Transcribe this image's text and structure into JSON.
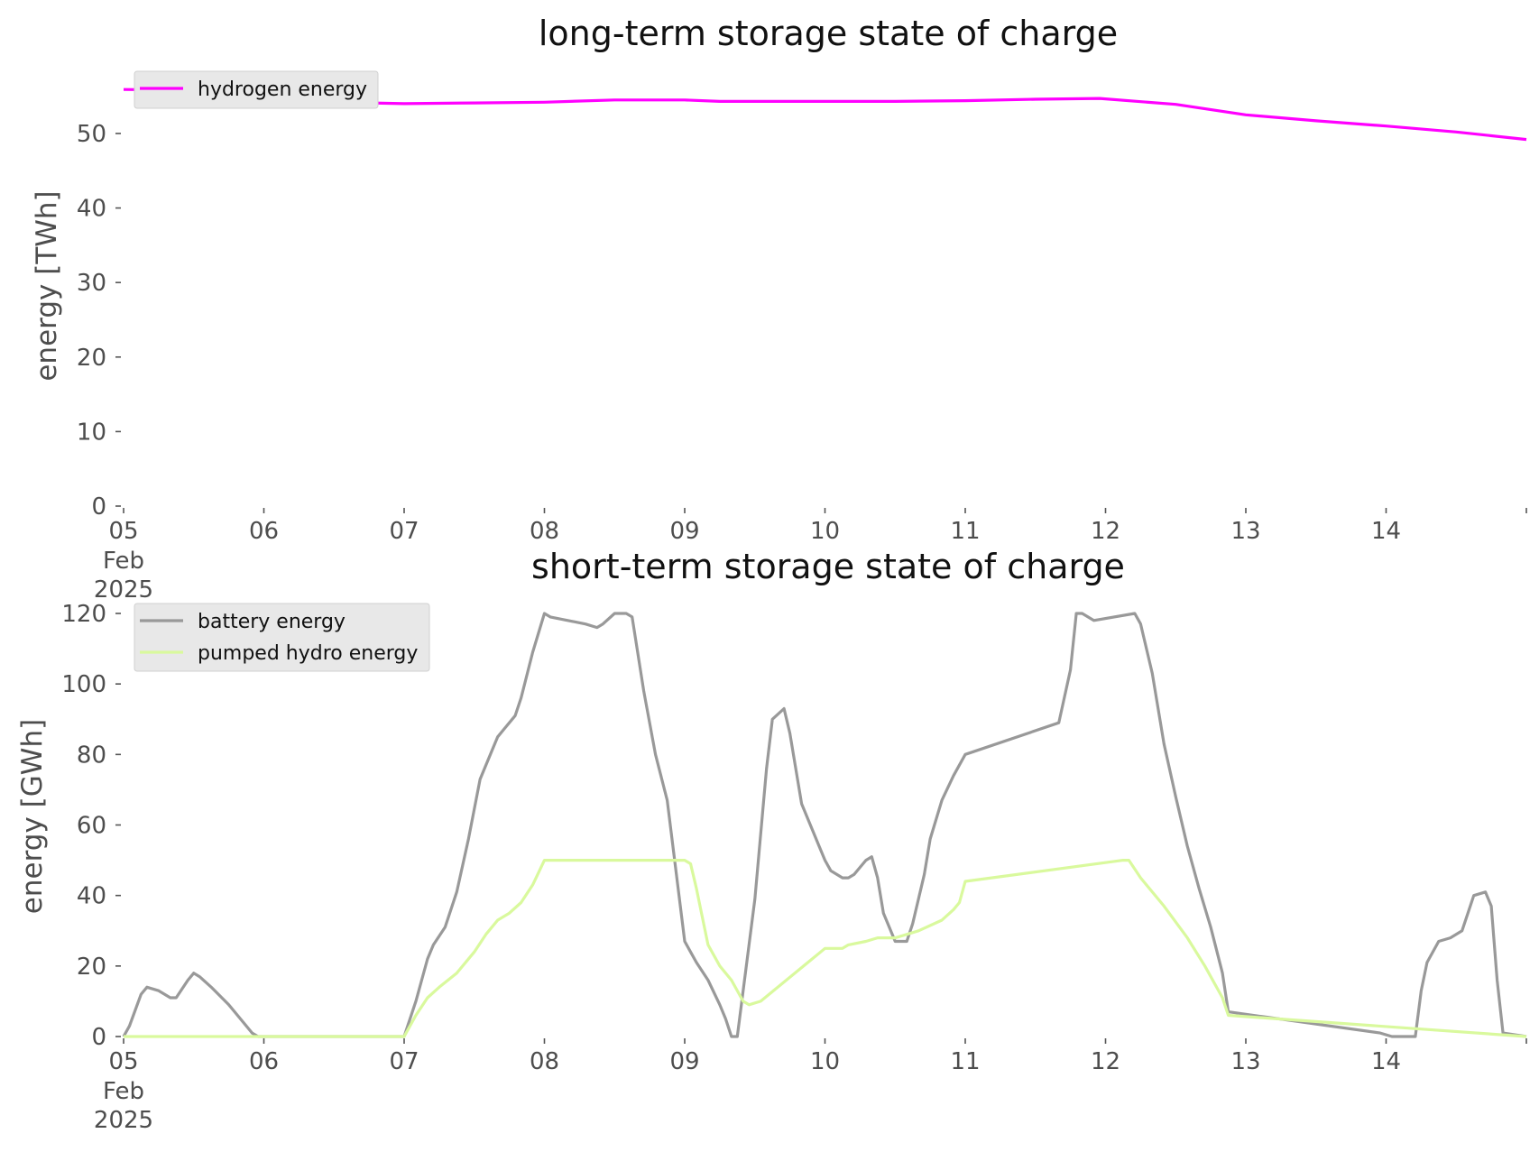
{
  "chart_data": [
    {
      "type": "line",
      "title": "long-term storage state of charge",
      "xlabel": "",
      "ylabel": "energy [TWh]",
      "xlim": [
        "2025-02-05",
        "2025-02-15"
      ],
      "ylim": [
        0,
        57.5
      ],
      "yticks": [
        0,
        10,
        20,
        30,
        40,
        50
      ],
      "xticks": [
        "05",
        "06",
        "07",
        "08",
        "09",
        "10",
        "11",
        "12",
        "13",
        "14"
      ],
      "xtick_date_label": [
        "Feb",
        "2025"
      ],
      "grid": false,
      "legend": "top-left",
      "series": [
        {
          "name": "hydrogen energy",
          "color": "#ff00ff",
          "x": [
            "2025-02-05 00:00",
            "2025-02-05 12:00",
            "2025-02-06 00:00",
            "2025-02-06 12:00",
            "2025-02-07 00:00",
            "2025-02-07 12:00",
            "2025-02-08 00:00",
            "2025-02-08 12:00",
            "2025-02-09 00:00",
            "2025-02-09 06:00",
            "2025-02-10 00:00",
            "2025-02-10 12:00",
            "2025-02-11 00:00",
            "2025-02-11 12:00",
            "2025-02-11 23:00",
            "2025-02-12 12:00",
            "2025-02-13 00:00",
            "2025-02-13 12:00",
            "2025-02-14 00:00",
            "2025-02-14 12:00",
            "2025-02-15 00:00"
          ],
          "values": [
            55.9,
            55.8,
            54.9,
            54.2,
            54.0,
            54.1,
            54.2,
            54.5,
            54.5,
            54.3,
            54.3,
            54.3,
            54.4,
            54.6,
            54.7,
            53.9,
            52.5,
            51.7,
            51.0,
            50.2,
            49.2
          ]
        }
      ]
    },
    {
      "type": "line",
      "title": "short-term storage state of charge",
      "xlabel": "",
      "ylabel": "energy [GWh]",
      "xlim": [
        "2025-02-05",
        "2025-02-15"
      ],
      "ylim": [
        0,
        120
      ],
      "yticks": [
        0,
        20,
        40,
        60,
        80,
        100,
        120
      ],
      "xticks": [
        "05",
        "06",
        "07",
        "08",
        "09",
        "10",
        "11",
        "12",
        "13",
        "14"
      ],
      "xtick_date_label": [
        "Feb",
        "2025"
      ],
      "grid": false,
      "legend": "top-left",
      "series": [
        {
          "name": "battery energy",
          "color": "#999999",
          "x": [
            "2025-02-05 00:00",
            "2025-02-05 01:00",
            "2025-02-05 03:00",
            "2025-02-05 04:00",
            "2025-02-05 06:00",
            "2025-02-05 08:00",
            "2025-02-05 09:00",
            "2025-02-05 11:00",
            "2025-02-05 12:00",
            "2025-02-05 13:00",
            "2025-02-05 15:00",
            "2025-02-05 18:00",
            "2025-02-05 20:00",
            "2025-02-05 22:00",
            "2025-02-05 23:00",
            "2025-02-06 00:00",
            "2025-02-07 00:00",
            "2025-02-07 02:00",
            "2025-02-07 04:00",
            "2025-02-07 05:00",
            "2025-02-07 07:00",
            "2025-02-07 09:00",
            "2025-02-07 11:00",
            "2025-02-07 13:00",
            "2025-02-07 15:00",
            "2025-02-07 16:00",
            "2025-02-07 17:00",
            "2025-02-07 19:00",
            "2025-02-07 20:00",
            "2025-02-07 22:00",
            "2025-02-08 00:00",
            "2025-02-08 01:00",
            "2025-02-08 04:00",
            "2025-02-08 07:00",
            "2025-02-08 09:00",
            "2025-02-08 10:00",
            "2025-02-08 12:00",
            "2025-02-08 14:00",
            "2025-02-08 15:00",
            "2025-02-08 17:00",
            "2025-02-08 19:00",
            "2025-02-08 21:00",
            "2025-02-09 00:00",
            "2025-02-09 02:00",
            "2025-02-09 04:00",
            "2025-02-09 06:00",
            "2025-02-09 07:00",
            "2025-02-09 08:00",
            "2025-02-09 09:00",
            "2025-02-09 12:00",
            "2025-02-09 14:00",
            "2025-02-09 15:00",
            "2025-02-09 17:00",
            "2025-02-09 18:00",
            "2025-02-09 20:00",
            "2025-02-09 23:00",
            "2025-02-10 00:00",
            "2025-02-10 01:00",
            "2025-02-10 03:00",
            "2025-02-10 04:00",
            "2025-02-10 05:00",
            "2025-02-10 06:00",
            "2025-02-10 07:00",
            "2025-02-10 08:00",
            "2025-02-10 09:00",
            "2025-02-10 10:00",
            "2025-02-10 12:00",
            "2025-02-10 14:00",
            "2025-02-10 15:00",
            "2025-02-10 17:00",
            "2025-02-10 18:00",
            "2025-02-10 20:00",
            "2025-02-10 22:00",
            "2025-02-11 00:00",
            "2025-02-11 16:00",
            "2025-02-11 18:00",
            "2025-02-11 19:00",
            "2025-02-11 20:00",
            "2025-02-11 22:00",
            "2025-02-12 05:00",
            "2025-02-12 06:00",
            "2025-02-12 08:00",
            "2025-02-12 10:00",
            "2025-02-12 12:00",
            "2025-02-12 14:00",
            "2025-02-12 16:00",
            "2025-02-12 18:00",
            "2025-02-12 20:00",
            "2025-02-12 21:00",
            "2025-02-13 23:00",
            "2025-02-14 01:00",
            "2025-02-14 03:00",
            "2025-02-14 05:00",
            "2025-02-14 06:00",
            "2025-02-14 07:00",
            "2025-02-14 09:00",
            "2025-02-14 11:00",
            "2025-02-14 13:00",
            "2025-02-14 14:00",
            "2025-02-14 15:00",
            "2025-02-14 17:00",
            "2025-02-14 18:00",
            "2025-02-14 19:00",
            "2025-02-14 20:00",
            "2025-02-15 00:00"
          ],
          "values": [
            0,
            3,
            12,
            14,
            13,
            11,
            11,
            16,
            18,
            17,
            14,
            9,
            5,
            1,
            0,
            0,
            0,
            10,
            22,
            26,
            31,
            41,
            56,
            73,
            81,
            85,
            87,
            91,
            96,
            109,
            120,
            119,
            118,
            117,
            116,
            117,
            120,
            120,
            119,
            98,
            80,
            67,
            27,
            21,
            16,
            9,
            5,
            0,
            0,
            39,
            76,
            90,
            93,
            86,
            66,
            54,
            50,
            47,
            45,
            45,
            46,
            48,
            50,
            51,
            45,
            35,
            27,
            27,
            32,
            46,
            56,
            67,
            74,
            80,
            89,
            104,
            120,
            120,
            118,
            120,
            117,
            103,
            83,
            68,
            54,
            42,
            31,
            18,
            7,
            1,
            0,
            0,
            0,
            13,
            21,
            27,
            28,
            30,
            35,
            40,
            41,
            37,
            16,
            1,
            0
          ]
        },
        {
          "name": "pumped hydro energy",
          "color": "#d9f99d",
          "x": [
            "2025-02-05 00:00",
            "2025-02-07 00:00",
            "2025-02-07 02:00",
            "2025-02-07 04:00",
            "2025-02-07 06:00",
            "2025-02-07 09:00",
            "2025-02-07 12:00",
            "2025-02-07 14:00",
            "2025-02-07 16:00",
            "2025-02-07 18:00",
            "2025-02-07 20:00",
            "2025-02-07 22:00",
            "2025-02-08 00:00",
            "2025-02-09 00:00",
            "2025-02-09 01:00",
            "2025-02-09 02:00",
            "2025-02-09 03:00",
            "2025-02-09 04:00",
            "2025-02-09 06:00",
            "2025-02-09 08:00",
            "2025-02-09 10:00",
            "2025-02-09 11:00",
            "2025-02-09 13:00",
            "2025-02-10 00:00",
            "2025-02-10 03:00",
            "2025-02-10 04:00",
            "2025-02-10 07:00",
            "2025-02-10 09:00",
            "2025-02-10 12:00",
            "2025-02-10 16:00",
            "2025-02-10 20:00",
            "2025-02-10 22:00",
            "2025-02-10 23:00",
            "2025-02-11 00:00",
            "2025-02-12 03:00",
            "2025-02-12 04:00",
            "2025-02-12 06:00",
            "2025-02-12 10:00",
            "2025-02-12 14:00",
            "2025-02-12 17:00",
            "2025-02-12 20:00",
            "2025-02-12 21:00",
            "2025-02-15 00:00"
          ],
          "values": [
            0,
            0,
            6,
            11,
            14,
            18,
            24,
            29,
            33,
            35,
            38,
            43,
            50,
            50,
            49,
            42,
            34,
            26,
            20,
            16,
            10,
            9,
            10,
            25,
            25,
            26,
            27,
            28,
            28,
            30,
            33,
            36,
            38,
            44,
            50,
            50,
            45,
            37,
            28,
            20,
            11,
            6,
            0
          ]
        }
      ]
    }
  ]
}
